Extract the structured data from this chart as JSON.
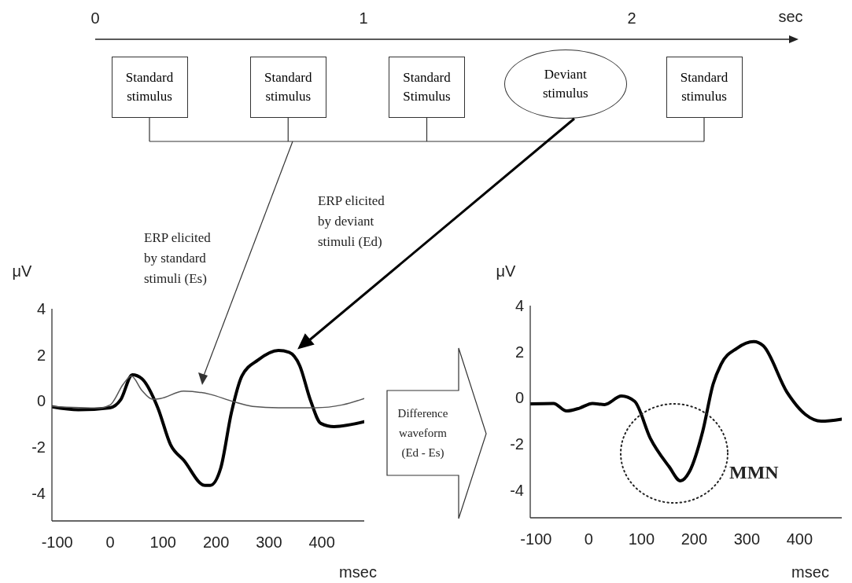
{
  "chart_data": [
    {
      "type": "other",
      "categories": [
        "0",
        "1",
        "2"
      ],
      "xlabel": "sec",
      "annotations": [
        "Standard stimulus",
        "Standard stimulus",
        "Standard Stimulus",
        "Deviant stimulus",
        "Standard stimulus"
      ]
    },
    {
      "type": "line",
      "xlabel": "msec",
      "ylabel": "μV",
      "xlim": [
        -110,
        480
      ],
      "ylim": [
        -5.2,
        4
      ],
      "xticks": [
        -100,
        0,
        100,
        200,
        300,
        400
      ],
      "yticks": [
        -4,
        -2,
        0,
        2,
        4
      ],
      "annotations": [
        "ERP elicited by standard stimuli (Es)",
        "ERP elicited by deviant stimuli (Ed)"
      ],
      "series": [
        {
          "color": "#000000",
          "x": [
            -110,
            -60,
            0,
            20,
            42,
            60,
            90,
            114,
            139,
            179,
            189,
            209,
            229,
            249,
            279,
            318,
            338,
            358,
            378,
            398,
            423,
            480
          ],
          "values": [
            -0.25,
            -0.38,
            -0.29,
            0.06,
            1.14,
            0.97,
            -0.29,
            -1.89,
            -2.57,
            -3.66,
            -3.66,
            -2.9,
            -0.51,
            1.09,
            1.77,
            2.19,
            2.11,
            1.54,
            0.06,
            -0.97,
            -1.11,
            -0.9
          ]
        },
        {
          "color": "#555555",
          "x": [
            -110,
            -20,
            0,
            25,
            40,
            60,
            80,
            95,
            139,
            189,
            229,
            269,
            318,
            388,
            438,
            480
          ],
          "values": [
            -0.23,
            -0.3,
            -0.17,
            0.74,
            1.09,
            0.46,
            0.08,
            0.11,
            0.43,
            0.29,
            0,
            -0.23,
            -0.29,
            -0.29,
            -0.17,
            0.11
          ]
        }
      ]
    },
    {
      "type": "line",
      "xlabel": "msec",
      "ylabel": "μV",
      "xlim": [
        -111,
        480
      ],
      "ylim": [
        -5.2,
        4
      ],
      "xticks": [
        -100,
        0,
        100,
        200,
        300,
        400
      ],
      "yticks": [
        -4,
        -2,
        0,
        2,
        4
      ],
      "annotations": [
        "Difference waveform (Ed - Es)",
        "MMN"
      ],
      "series": [
        {
          "color": "#000000",
          "x": [
            -111,
            -67,
            -42,
            -17,
            7,
            30,
            62,
            87,
            117,
            152,
            174,
            191,
            216,
            236,
            251,
            281,
            313,
            331,
            376,
            411,
            441,
            480
          ],
          "values": [
            -0.26,
            -0.24,
            -0.57,
            -0.44,
            -0.24,
            -0.29,
            0.08,
            -0.15,
            -1.76,
            -2.97,
            -3.6,
            -3.2,
            -1.47,
            0.6,
            1.46,
            2.15,
            2.44,
            2.26,
            0.25,
            -0.72,
            -1.01,
            -0.92
          ]
        }
      ]
    }
  ]
}
